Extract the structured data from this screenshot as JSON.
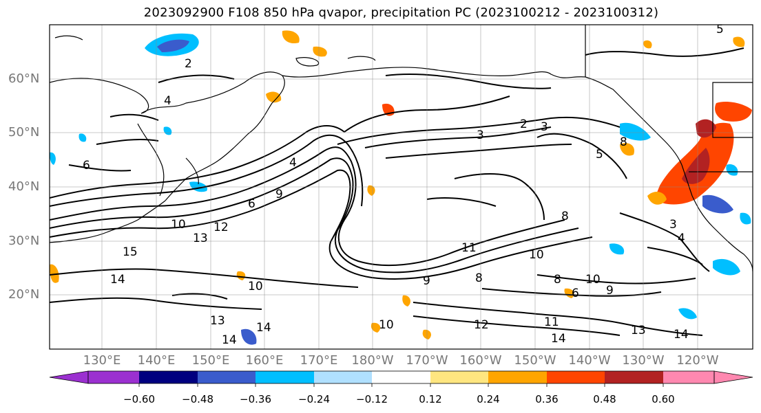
{
  "title": "2023092900 F108 850 hPa qvapor, precipitation PC (2023100212 - 2023100312)",
  "lat_labels": [
    "60°N",
    "50°N",
    "40°N",
    "30°N",
    "20°N"
  ],
  "lon_labels": [
    "130°E",
    "140°E",
    "150°E",
    "160°E",
    "170°E",
    "180°W",
    "170°W",
    "160°W",
    "150°W",
    "140°W",
    "130°W",
    "120°W"
  ],
  "colorbar": {
    "colors": [
      "#9b30d0",
      "#00007f",
      "#3a5ccc",
      "#00bfff",
      "#b0e0ff",
      "#ffffff",
      "#ffe680",
      "#ffa500",
      "#ff4500",
      "#b22222",
      "#ff88b0"
    ],
    "tick_labels": [
      "−0.60",
      "−0.48",
      "−0.36",
      "−0.24",
      "−0.12",
      "0.12",
      "0.24",
      "0.36",
      "0.48",
      "0.60"
    ]
  },
  "contour_labels": [
    "2",
    "4",
    "3",
    "2",
    "3",
    "5",
    "8",
    "6",
    "4",
    "6",
    "9",
    "10",
    "12",
    "13",
    "15",
    "14",
    "10",
    "13",
    "14",
    "14",
    "10",
    "11",
    "8",
    "9",
    "10",
    "12",
    "11",
    "14",
    "13",
    "14",
    "6",
    "4",
    "3",
    "10",
    "8",
    "9",
    "5",
    "8"
  ]
}
